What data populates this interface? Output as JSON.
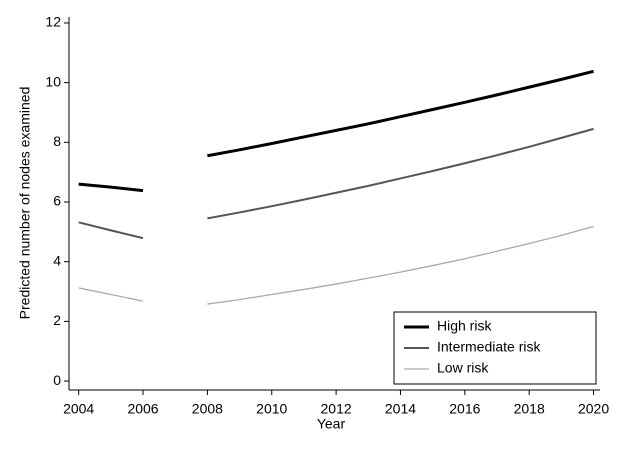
{
  "chart_data": {
    "type": "line",
    "x_label": "Year",
    "y_label": "Predicted number of nodes examined",
    "x": [
      2004,
      2005,
      2006,
      2007,
      2008,
      2009,
      2010,
      2011,
      2012,
      2013,
      2014,
      2015,
      2016,
      2017,
      2018,
      2019,
      2020
    ],
    "series": [
      {
        "name": "High risk",
        "color": "#000000",
        "width": 3,
        "values": [
          6.6,
          6.5,
          6.38,
          null,
          7.55,
          7.75,
          7.96,
          8.18,
          8.4,
          8.62,
          8.86,
          9.1,
          9.34,
          9.59,
          9.85,
          10.11,
          10.38
        ]
      },
      {
        "name": "Intermediate risk",
        "color": "#555555",
        "width": 2,
        "values": [
          5.32,
          5.05,
          4.79,
          null,
          5.45,
          5.65,
          5.86,
          6.08,
          6.31,
          6.54,
          6.79,
          7.04,
          7.3,
          7.57,
          7.85,
          8.15,
          8.45
        ]
      },
      {
        "name": "Low risk",
        "color": "#aaaaaa",
        "width": 1.3,
        "values": [
          3.12,
          2.9,
          2.68,
          null,
          2.58,
          2.73,
          2.9,
          3.07,
          3.25,
          3.45,
          3.65,
          3.87,
          4.1,
          4.35,
          4.61,
          4.88,
          5.18
        ]
      }
    ],
    "xlim": [
      2003.7,
      2020.2
    ],
    "ylim": [
      -0.3,
      12.2
    ],
    "xticks": [
      2004,
      2006,
      2008,
      2010,
      2012,
      2014,
      2016,
      2018,
      2020
    ],
    "yticks": [
      0,
      2,
      4,
      6,
      8,
      10,
      12
    ],
    "legend": "bottom-right"
  }
}
